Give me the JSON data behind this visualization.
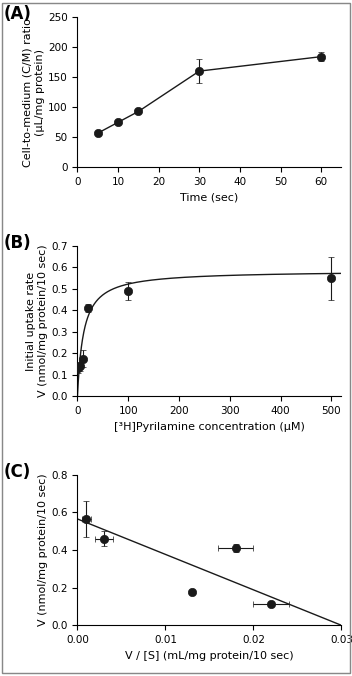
{
  "panel_A": {
    "label": "(A)",
    "x": [
      5,
      10,
      15,
      30,
      60
    ],
    "y": [
      57,
      75,
      93,
      160,
      184
    ],
    "yerr": [
      0,
      0,
      0,
      20,
      8
    ],
    "xlabel": "Time (sec)",
    "ylabel": "Cell-to-medium (C/M) ratio\n(μL/mg protein)",
    "xlim": [
      0,
      65
    ],
    "ylim": [
      0,
      250
    ],
    "xticks": [
      0,
      10,
      20,
      30,
      40,
      50,
      60
    ],
    "yticks": [
      0,
      50,
      100,
      150,
      200,
      250
    ]
  },
  "panel_B": {
    "label": "(B)",
    "x": [
      1,
      5,
      10,
      20,
      100,
      500
    ],
    "y": [
      0.13,
      0.14,
      0.175,
      0.41,
      0.49,
      0.55
    ],
    "yerr": [
      0.02,
      0.02,
      0.04,
      0.02,
      0.04,
      0.1
    ],
    "Vmax": 0.585,
    "Km": 12,
    "xlabel": "[³H]Pyrilamine concentration (μM)",
    "ylabel": "Initial uptake rate\nV (nmol/mg protein/10 sec)",
    "xlim": [
      0,
      520
    ],
    "ylim": [
      0.0,
      0.7
    ],
    "xticks": [
      0,
      100,
      200,
      300,
      400,
      500
    ],
    "yticks": [
      0.0,
      0.1,
      0.2,
      0.3,
      0.4,
      0.5,
      0.6,
      0.7
    ]
  },
  "panel_C": {
    "label": "(C)",
    "x": [
      0.001,
      0.003,
      0.013,
      0.018,
      0.022
    ],
    "y": [
      0.565,
      0.46,
      0.175,
      0.41,
      0.115
    ],
    "xerr": [
      0.0005,
      0.001,
      0.0,
      0.002,
      0.002
    ],
    "yerr": [
      0.095,
      0.04,
      0.0,
      0.02,
      0.01
    ],
    "line_x": [
      0.0,
      0.03
    ],
    "line_y": [
      0.565,
      0.0
    ],
    "xlabel": "V / [S] (mL/mg protein/10 sec)",
    "ylabel": "V (nmol/mg protein/10 sec)",
    "xlim": [
      0.0,
      0.03
    ],
    "ylim": [
      0.0,
      0.8
    ],
    "xticks": [
      0.0,
      0.01,
      0.02,
      0.03
    ],
    "yticks": [
      0.0,
      0.2,
      0.4,
      0.6,
      0.8
    ]
  },
  "bg_color": "#ffffff",
  "marker_color": "#1a1a1a",
  "line_color": "#1a1a1a",
  "marker_size": 6,
  "fontsize_label": 8,
  "fontsize_tick": 7.5,
  "fontsize_panel": 12
}
